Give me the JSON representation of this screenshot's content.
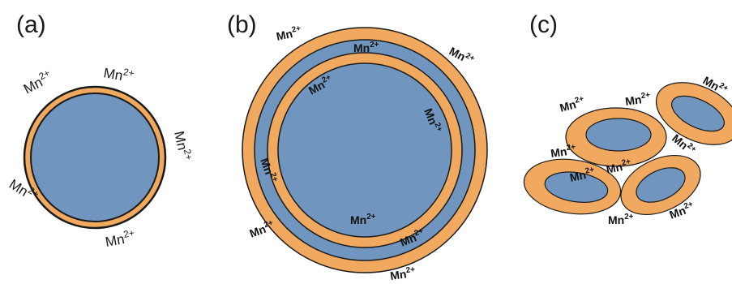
{
  "panels": {
    "a": {
      "label": "(a)",
      "ions": [
        "Mn",
        "Mn",
        "Mn",
        "Mn",
        "Mn"
      ],
      "charge": "2+"
    },
    "b": {
      "label": "(b)",
      "ions": [
        "Mn",
        "Mn",
        "Mn",
        "Mn",
        "Mn",
        "Mn",
        "Mn",
        "Mn",
        "Mn",
        "Mn"
      ],
      "charge": "2+"
    },
    "c": {
      "label": "(c)",
      "ions": [
        "Mn",
        "Mn",
        "Mn",
        "Mn",
        "Mn",
        "Mn",
        "Mn",
        "Mn",
        "Mn"
      ],
      "charge": "2+"
    }
  },
  "colors": {
    "core": "#7096bf",
    "shell": "#f0a95e",
    "outline": "#1a1a1a"
  }
}
